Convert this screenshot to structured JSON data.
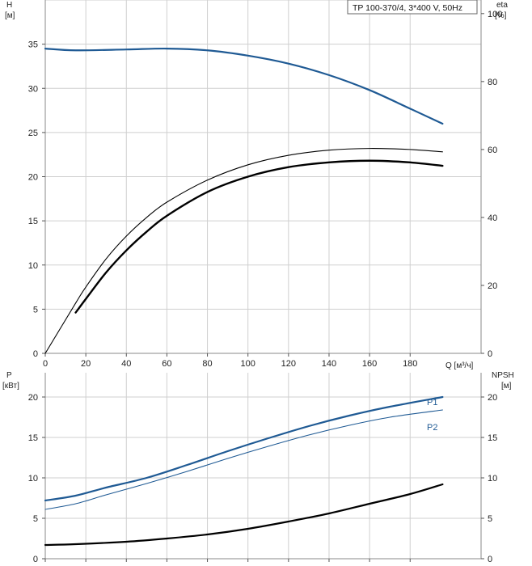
{
  "legend_box": {
    "text": "TP 100-370/4, 3*400 V, 50Hz"
  },
  "colors": {
    "blue": "#1f5a94",
    "black": "#000000",
    "grid": "#cfcfcf",
    "frame": "#888888"
  },
  "chart_data": [
    {
      "type": "line",
      "grid": true,
      "x_axis": {
        "label": "Q [м³/ч]",
        "range": [
          0,
          215
        ],
        "ticks": [
          0,
          20,
          40,
          60,
          80,
          100,
          120,
          140,
          160,
          180
        ]
      },
      "left_axis": {
        "label": "H",
        "unit": "[м]",
        "range": [
          0,
          40
        ],
        "ticks": [
          0,
          5,
          10,
          15,
          20,
          25,
          30,
          35
        ]
      },
      "right_axis": {
        "label": "eta",
        "unit": "[%]",
        "range": [
          0,
          104
        ],
        "ticks": [
          0,
          20,
          40,
          60,
          80,
          100
        ]
      },
      "series": [
        {
          "id": "head",
          "axis": "left",
          "color": "#1f5a94",
          "width": 2.2,
          "points": [
            [
              0,
              34.5
            ],
            [
              15,
              34.3
            ],
            [
              40,
              34.4
            ],
            [
              60,
              34.5
            ],
            [
              80,
              34.3
            ],
            [
              100,
              33.7
            ],
            [
              120,
              32.8
            ],
            [
              140,
              31.5
            ],
            [
              160,
              29.8
            ],
            [
              180,
              27.7
            ],
            [
              196,
              26.0
            ]
          ]
        },
        {
          "id": "efficiency-thin",
          "axis": "right",
          "color": "#000000",
          "width": 1.1,
          "points": [
            [
              0,
              0
            ],
            [
              15,
              14.8
            ],
            [
              20,
              19.5
            ],
            [
              30,
              27.8
            ],
            [
              40,
              34.5
            ],
            [
              50,
              40.0
            ],
            [
              60,
              44.5
            ],
            [
              80,
              51.0
            ],
            [
              100,
              55.5
            ],
            [
              120,
              58.3
            ],
            [
              140,
              59.8
            ],
            [
              160,
              60.3
            ],
            [
              180,
              60.0
            ],
            [
              196,
              59.3
            ]
          ]
        },
        {
          "id": "efficiency-thick",
          "axis": "right",
          "color": "#000000",
          "width": 2.4,
          "points": [
            [
              15,
              12.0
            ],
            [
              20,
              16.0
            ],
            [
              30,
              23.8
            ],
            [
              40,
              30.3
            ],
            [
              50,
              35.8
            ],
            [
              60,
              40.5
            ],
            [
              80,
              47.5
            ],
            [
              100,
              52.0
            ],
            [
              120,
              54.8
            ],
            [
              140,
              56.2
            ],
            [
              160,
              56.7
            ],
            [
              180,
              56.2
            ],
            [
              196,
              55.2
            ]
          ]
        }
      ]
    },
    {
      "type": "line",
      "grid": true,
      "x_axis": {
        "range": [
          0,
          215
        ],
        "ticks": [
          0,
          20,
          40,
          60,
          80,
          100,
          120,
          140,
          160,
          180
        ]
      },
      "left_axis": {
        "label": "P",
        "unit": "[кВт]",
        "range": [
          0,
          23
        ],
        "ticks": [
          0,
          5,
          10,
          15,
          20
        ]
      },
      "right_axis": {
        "label": "NPSH",
        "unit": "[м]",
        "range": [
          0,
          23
        ],
        "ticks": [
          0,
          5,
          10,
          15,
          20
        ]
      },
      "series": [
        {
          "id": "P1",
          "name": "P1",
          "axis": "left",
          "color": "#1f5a94",
          "width": 2.2,
          "points": [
            [
              0,
              7.2
            ],
            [
              15,
              7.8
            ],
            [
              30,
              8.8
            ],
            [
              50,
              10.0
            ],
            [
              70,
              11.6
            ],
            [
              90,
              13.3
            ],
            [
              110,
              14.9
            ],
            [
              130,
              16.4
            ],
            [
              150,
              17.7
            ],
            [
              170,
              18.8
            ],
            [
              196,
              20.0
            ]
          ]
        },
        {
          "id": "P2",
          "name": "P2",
          "axis": "left",
          "color": "#1f5a94",
          "width": 1.1,
          "points": [
            [
              0,
              6.1
            ],
            [
              15,
              6.8
            ],
            [
              30,
              7.9
            ],
            [
              50,
              9.3
            ],
            [
              70,
              10.8
            ],
            [
              90,
              12.4
            ],
            [
              110,
              13.9
            ],
            [
              130,
              15.3
            ],
            [
              150,
              16.5
            ],
            [
              170,
              17.5
            ],
            [
              196,
              18.4
            ]
          ]
        },
        {
          "id": "NPSH",
          "axis": "right",
          "color": "#000000",
          "width": 2.2,
          "points": [
            [
              0,
              1.7
            ],
            [
              15,
              1.8
            ],
            [
              40,
              2.1
            ],
            [
              60,
              2.5
            ],
            [
              80,
              3.0
            ],
            [
              100,
              3.7
            ],
            [
              120,
              4.6
            ],
            [
              140,
              5.6
            ],
            [
              160,
              6.8
            ],
            [
              180,
              8.0
            ],
            [
              196,
              9.2
            ]
          ]
        }
      ]
    }
  ]
}
